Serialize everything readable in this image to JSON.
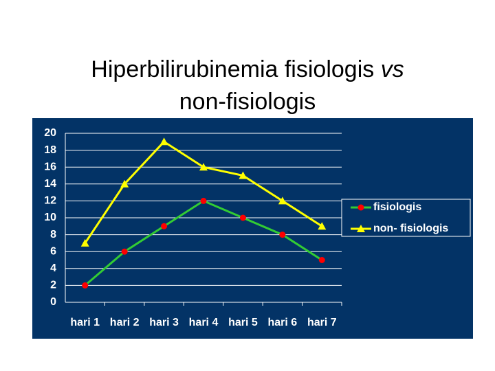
{
  "chart_data": {
    "type": "line",
    "title": "Hiperbilirubinemia fisiologis",
    "title_emphasis": "vs",
    "title_line2": "non-fisiologis",
    "categories": [
      "hari 1",
      "hari 2",
      "hari 3",
      "hari 4",
      "hari 5",
      "hari 6",
      "hari 7"
    ],
    "series": [
      {
        "name": "fisiologis",
        "color": "#33cc33",
        "marker_color": "#ff0000",
        "marker": "circle",
        "values": [
          2,
          6,
          9,
          12,
          10,
          8,
          5
        ]
      },
      {
        "name": "non- fisiologis",
        "color": "#ffff00",
        "marker_color": "#ffff00",
        "marker": "triangle",
        "values": [
          7,
          14,
          19,
          16,
          15,
          12,
          9
        ]
      }
    ],
    "ylim": [
      0,
      20
    ],
    "yticks": [
      0,
      2,
      4,
      6,
      8,
      10,
      12,
      14,
      16,
      18,
      20
    ],
    "grid": true,
    "legend": "right",
    "background": "#033366"
  }
}
